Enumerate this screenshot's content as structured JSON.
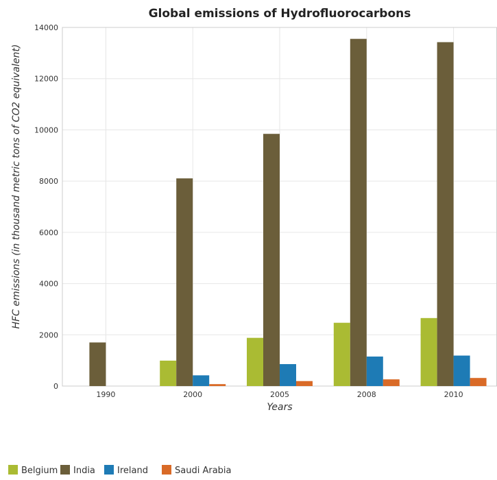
{
  "chart_data": {
    "type": "bar",
    "title": "Global emissions of Hydrofluorocarbons",
    "xlabel": "Years",
    "ylabel": "HFC emissions (in thousand metric tons of CO2 equivalent)",
    "categories": [
      "1990",
      "2000",
      "2005",
      "2008",
      "2010"
    ],
    "ylim": [
      0,
      14000
    ],
    "yticks": [
      0,
      2000,
      4000,
      6000,
      8000,
      10000,
      12000,
      14000
    ],
    "grid": true,
    "legend_position": "bottom-left",
    "series": [
      {
        "name": "Belgium",
        "color": "#aabb33",
        "values": [
          0.1,
          992.6,
          1882.6,
          2470.8,
          2655.0
        ]
      },
      {
        "name": "India",
        "color": "#6b5e3a",
        "values": [
          1702.2,
          8107.2,
          9845.2,
          13553.9,
          13425.0
        ]
      },
      {
        "name": "Ireland",
        "color": "#1e7bb5",
        "values": [
          0.1,
          418.7,
          857.3,
          1152.4,
          1190.0
        ]
      },
      {
        "name": "Saudi Arabia",
        "color": "#d96a27",
        "values": [
          0.1,
          75.5,
          194.7,
          262.1,
          316.0
        ]
      }
    ]
  }
}
